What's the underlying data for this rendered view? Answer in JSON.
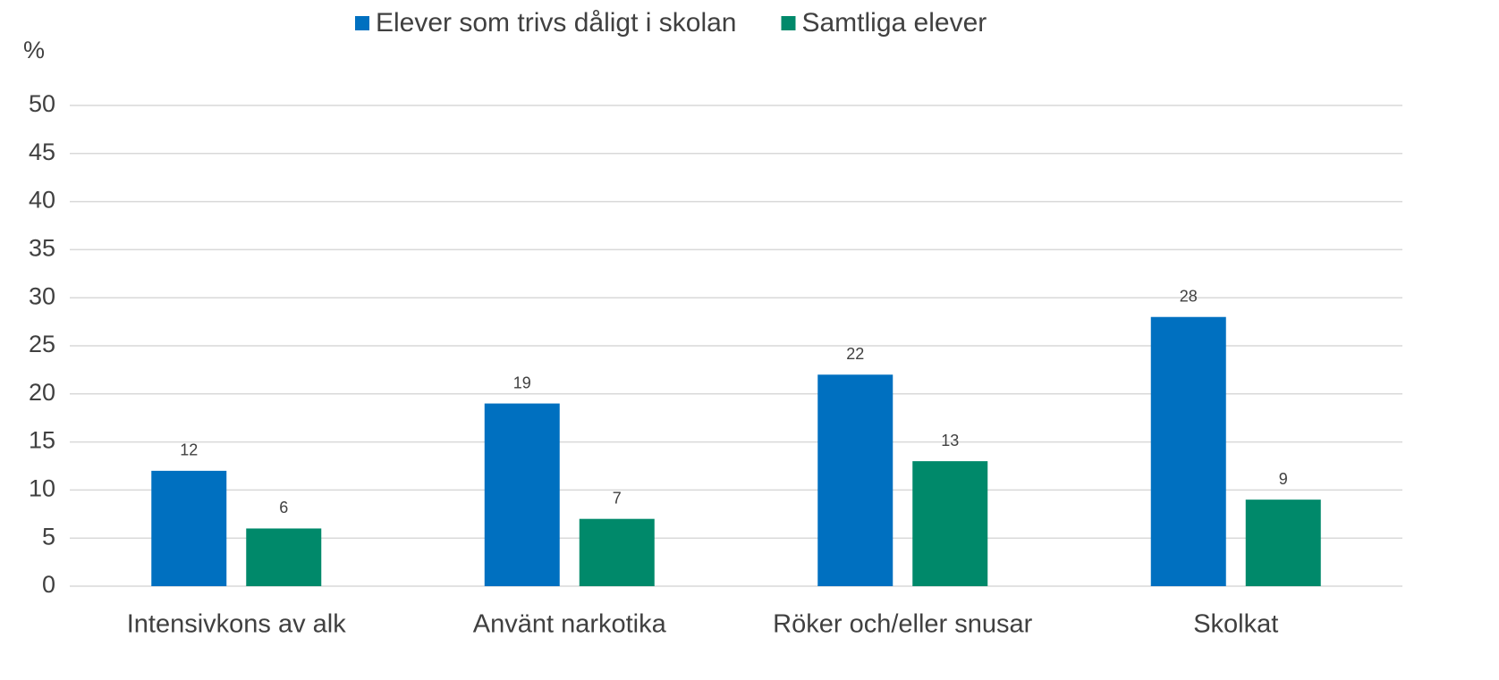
{
  "chart_data": {
    "type": "bar",
    "y_axis_label": "%",
    "categories": [
      "Intensivkons  av alk",
      "Använt narkotika",
      "Röker och/eller snusar",
      "Skolkat"
    ],
    "series": [
      {
        "name": "Elever som trivs dåligt i skolan",
        "color": "#0070c0",
        "values": [
          12,
          19,
          22,
          28
        ]
      },
      {
        "name": "Samtliga elever",
        "color": "#00896a",
        "values": [
          6,
          7,
          13,
          9
        ]
      }
    ],
    "ylim": [
      0,
      50
    ],
    "yticks": [
      0,
      5,
      10,
      15,
      20,
      25,
      30,
      35,
      40,
      45,
      50
    ],
    "grid": true,
    "legend": "top"
  }
}
